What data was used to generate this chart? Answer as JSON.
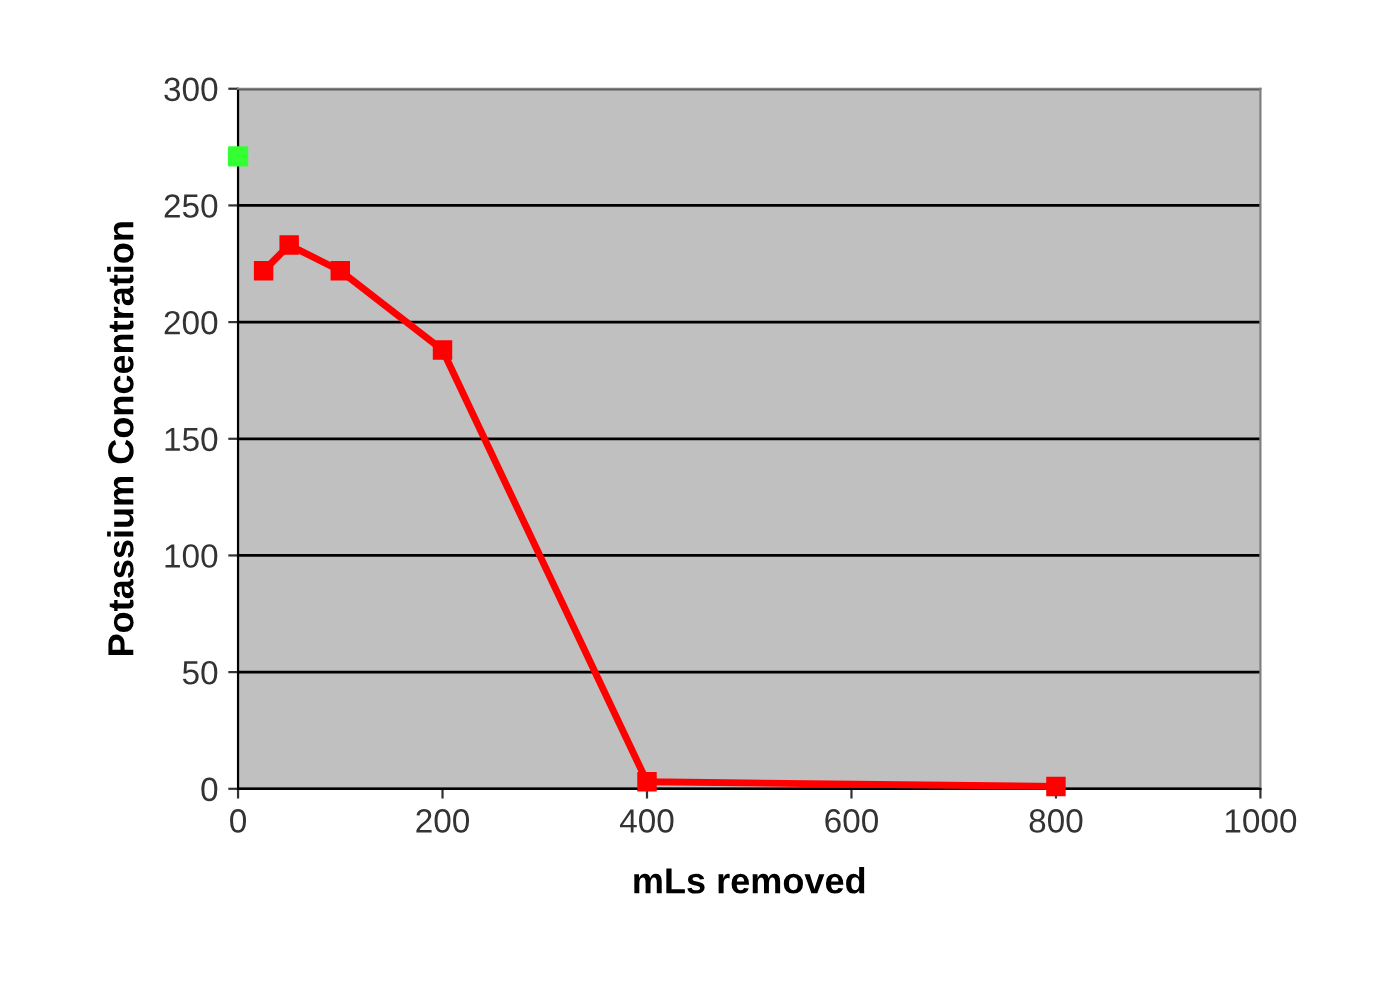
{
  "chart_data": {
    "type": "line",
    "xlabel": "mLs removed",
    "ylabel": "Potassium Concentration",
    "series": [
      {
        "color": "#ff0000",
        "x": [
          25,
          50,
          100,
          200,
          400,
          800
        ],
        "values": [
          222,
          233,
          222,
          188,
          3,
          1
        ],
        "marker": "square"
      },
      {
        "type": "scatter",
        "color": "#33ff33",
        "x": [
          0
        ],
        "values": [
          271
        ],
        "marker": "square"
      }
    ],
    "xlim": [
      0,
      1000
    ],
    "xticks": [
      0,
      200,
      400,
      600,
      800,
      1000
    ],
    "ylim": [
      0,
      300
    ],
    "yticks": [
      0,
      50,
      100,
      150,
      200,
      250,
      300
    ],
    "grid": "y",
    "legend": false,
    "line_style": "solid"
  }
}
